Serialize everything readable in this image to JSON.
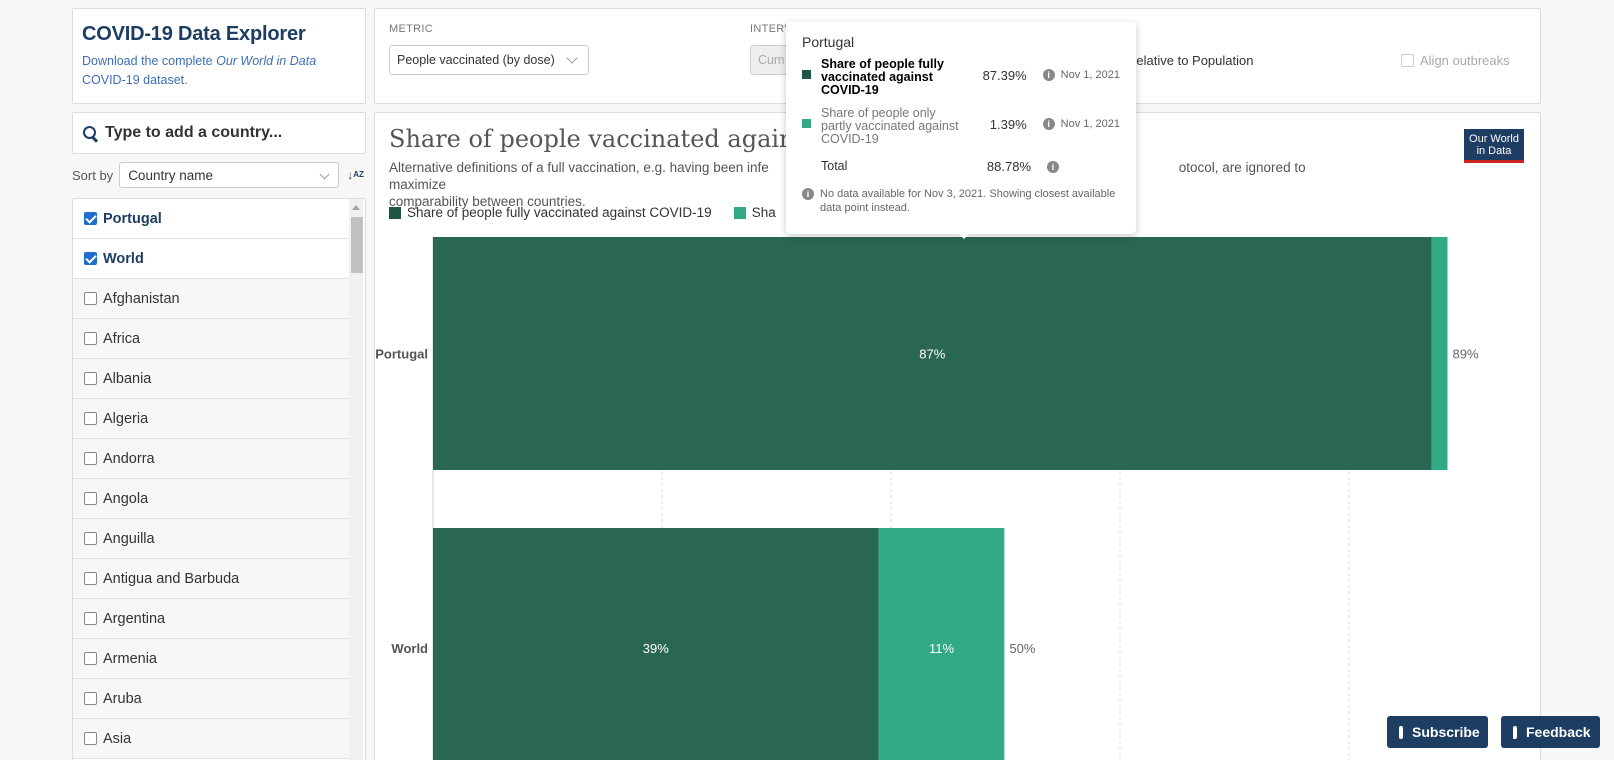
{
  "sidebar": {
    "title": "COVID-19 Data Explorer",
    "download_prefix": "Download the complete ",
    "download_em": "Our World in Data",
    "download_suffix": " COVID-19 dataset.",
    "search_placeholder": "Type to add a country...",
    "sort_label": "Sort by",
    "sort_value": "Country name",
    "sort_icon": "sort-alpha-icon",
    "countries": [
      {
        "name": "Portugal",
        "checked": true
      },
      {
        "name": "World",
        "checked": true
      },
      {
        "name": "Afghanistan",
        "checked": false
      },
      {
        "name": "Africa",
        "checked": false
      },
      {
        "name": "Albania",
        "checked": false
      },
      {
        "name": "Algeria",
        "checked": false
      },
      {
        "name": "Andorra",
        "checked": false
      },
      {
        "name": "Angola",
        "checked": false
      },
      {
        "name": "Anguilla",
        "checked": false
      },
      {
        "name": "Antigua and Barbuda",
        "checked": false
      },
      {
        "name": "Argentina",
        "checked": false
      },
      {
        "name": "Armenia",
        "checked": false
      },
      {
        "name": "Aruba",
        "checked": false
      },
      {
        "name": "Asia",
        "checked": false
      }
    ]
  },
  "controls": {
    "metric_label": "METRIC",
    "metric_value": "People vaccinated (by dose)",
    "interval_label": "INTERV",
    "interval_value": "Cum",
    "relative_label": "Relative to Population",
    "align_label": "Align outbreaks"
  },
  "chart": {
    "title": "Share of people vaccinated against C",
    "subtitle_part1": "Alternative definitions of a full vaccination, e.g. having been infe",
    "subtitle_part2": "otocol, are ignored to maximize",
    "subtitle_line2": "comparability between countries.",
    "logo_line1": "Our World",
    "logo_line2": "in Data"
  },
  "chart_data": {
    "type": "bar",
    "orientation": "horizontal",
    "stacked": true,
    "categories": [
      "Portugal",
      "World"
    ],
    "series": [
      {
        "name": "Share of people fully vaccinated against COVID-19",
        "color": "#2a6654",
        "values": [
          87.39,
          39
        ],
        "labels": [
          "87%",
          "39%"
        ]
      },
      {
        "name": "Share of people only partly vaccinated against COVID-19",
        "color": "#33aa86",
        "values": [
          1.39,
          11
        ],
        "labels": [
          "",
          "11%"
        ]
      }
    ],
    "totals": [
      "89%",
      "50%"
    ],
    "legend_visible": [
      "Share of people fully vaccinated against COVID-19",
      "Sha"
    ],
    "xlim": [
      0,
      89
    ],
    "grid": true
  },
  "tooltip": {
    "country": "Portugal",
    "rows": [
      {
        "name": "Share of people fully vaccinated against COVID-19",
        "value": "87.39%",
        "date": "Nov 1, 2021",
        "color": "#1f5446"
      },
      {
        "name": "Share of people only partly vaccinated against COVID-19",
        "value": "1.39%",
        "date": "Nov 1, 2021",
        "color": "#33aa86"
      },
      {
        "name": "Total",
        "value": "88.78%",
        "date": ""
      }
    ],
    "note": "No data available for Nov 3, 2021. Showing closest available data point instead."
  },
  "buttons": {
    "subscribe": "Subscribe",
    "feedback": "Feedback"
  }
}
